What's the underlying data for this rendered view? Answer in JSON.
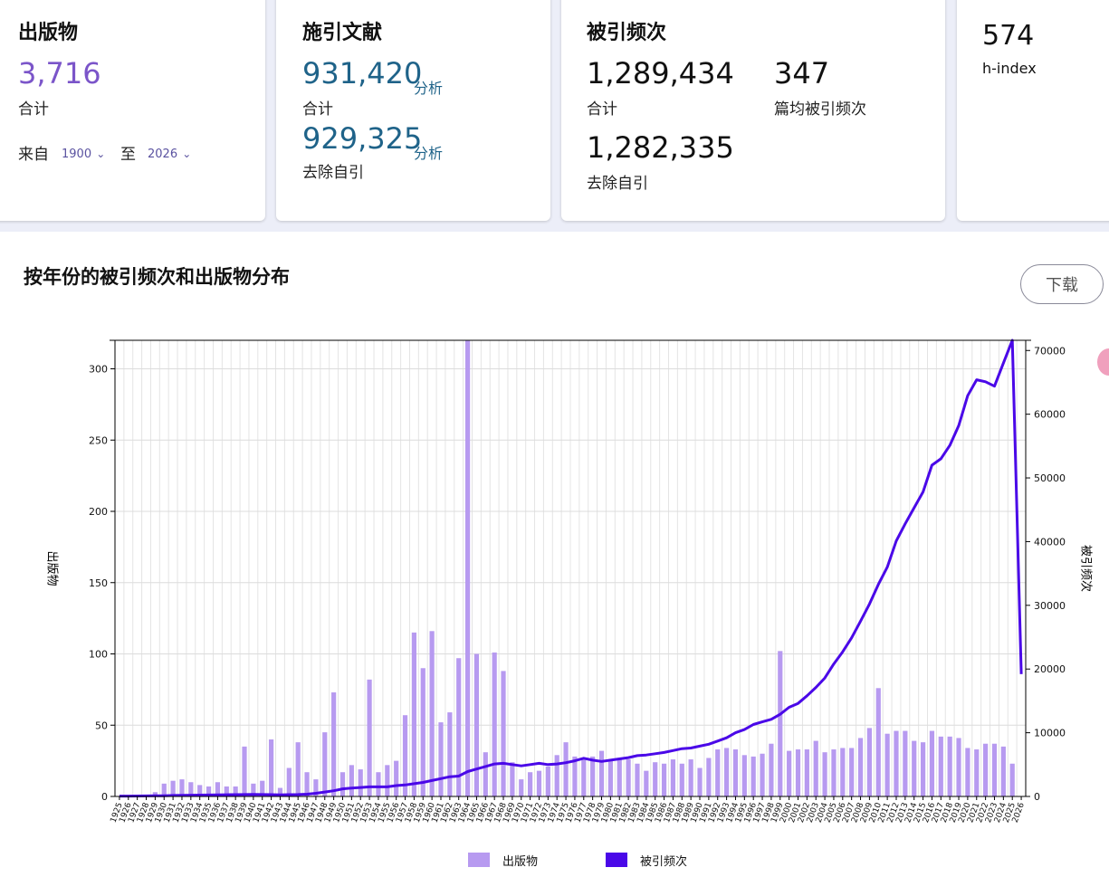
{
  "cards": {
    "publications": {
      "title": "出版物",
      "total": "3,716",
      "total_label": "合计",
      "from_label": "来自",
      "from_value": "1900",
      "to_label": "至",
      "to_value": "2026"
    },
    "citing": {
      "title": "施引文献",
      "total": "931,420",
      "analyze": "分析",
      "total_label": "合计",
      "excl": "929,325",
      "analyze2": "分析",
      "excl_label": "去除自引"
    },
    "times_cited": {
      "title": "被引频次",
      "total": "1,289,434",
      "total_label": "合计",
      "avg": "347",
      "avg_label": "篇均被引频次",
      "excl": "1,282,335",
      "excl_label": "去除自引"
    },
    "hindex": {
      "value": "574",
      "label": "h-index"
    }
  },
  "section_title": "按年份的被引频次和出版物分布",
  "download_label": "下载",
  "colors": {
    "bar": "#b79af0",
    "line": "#4a08e8",
    "accent": "#7b55c9",
    "link": "#1f6389"
  },
  "chart_data": {
    "type": "bar",
    "y_left_label": "出版物",
    "y_right_label": "被引频次",
    "y_left_ticks": [
      0,
      50,
      100,
      150,
      200,
      250,
      300
    ],
    "y_right_ticks": [
      0,
      10000,
      20000,
      30000,
      40000,
      50000,
      60000,
      70000
    ],
    "ylim_left": [
      0,
      320
    ],
    "ylim_right": [
      0,
      71600
    ],
    "categories": [
      "1925",
      "1926",
      "1927",
      "1928",
      "1929",
      "1930",
      "1931",
      "1932",
      "1933",
      "1934",
      "1935",
      "1936",
      "1937",
      "1938",
      "1939",
      "1940",
      "1941",
      "1942",
      "1943",
      "1944",
      "1945",
      "1946",
      "1947",
      "1948",
      "1949",
      "1950",
      "1951",
      "1952",
      "1953",
      "1954",
      "1955",
      "1956",
      "1957",
      "1958",
      "1959",
      "1960",
      "1961",
      "1962",
      "1963",
      "1964",
      "1965",
      "1966",
      "1967",
      "1968",
      "1969",
      "1970",
      "1971",
      "1972",
      "1973",
      "1974",
      "1975",
      "1976",
      "1977",
      "1978",
      "1979",
      "1980",
      "1981",
      "1982",
      "1983",
      "1984",
      "1985",
      "1986",
      "1987",
      "1988",
      "1989",
      "1990",
      "1991",
      "1992",
      "1993",
      "1994",
      "1995",
      "1996",
      "1997",
      "1998",
      "1999",
      "2000",
      "2001",
      "2002",
      "2003",
      "2004",
      "2005",
      "2006",
      "2007",
      "2008",
      "2009",
      "2010",
      "2011",
      "2012",
      "2013",
      "2014",
      "2015",
      "2016",
      "2017",
      "2018",
      "2019",
      "2020",
      "2021",
      "2022",
      "2023",
      "2024",
      "2025",
      "2026"
    ],
    "series": [
      {
        "name": "出版物",
        "type": "bar",
        "values": [
          0,
          0,
          0,
          0,
          3,
          9,
          11,
          12,
          10,
          8,
          7,
          10,
          7,
          7,
          35,
          9,
          11,
          40,
          6,
          20,
          38,
          17,
          12,
          45,
          73,
          17,
          22,
          19,
          82,
          17,
          22,
          25,
          57,
          115,
          90,
          116,
          52,
          59,
          97,
          320,
          100,
          31,
          101,
          88,
          24,
          12,
          17,
          18,
          21,
          29,
          38,
          28,
          26,
          28,
          32,
          25,
          27,
          26,
          23,
          18,
          24,
          23,
          26,
          23,
          26,
          20,
          27,
          33,
          34,
          33,
          29,
          28,
          30,
          37,
          102,
          32,
          33,
          33,
          39,
          31,
          33,
          34,
          34,
          41,
          48,
          76,
          44,
          46,
          46,
          39,
          38,
          46,
          42,
          42,
          41,
          34,
          33,
          37,
          37,
          35,
          23,
          0
        ]
      },
      {
        "name": "被引频次",
        "type": "line",
        "values": [
          50,
          60,
          70,
          80,
          100,
          120,
          150,
          180,
          200,
          220,
          230,
          250,
          270,
          280,
          300,
          320,
          300,
          280,
          260,
          280,
          300,
          350,
          500,
          700,
          900,
          1200,
          1300,
          1400,
          1500,
          1500,
          1500,
          1700,
          1800,
          2000,
          2200,
          2500,
          2800,
          3100,
          3200,
          3900,
          4300,
          4700,
          5100,
          5200,
          5000,
          4800,
          5000,
          5200,
          5000,
          5100,
          5300,
          5600,
          6000,
          5700,
          5500,
          5700,
          5900,
          6100,
          6400,
          6500,
          6700,
          6900,
          7200,
          7500,
          7600,
          7900,
          8200,
          8700,
          9200,
          10000,
          10500,
          11300,
          11700,
          12100,
          12900,
          14000,
          14600,
          15800,
          17100,
          18600,
          20800,
          22700,
          24900,
          27500,
          30200,
          33300,
          36000,
          40100,
          42800,
          45300,
          47800,
          52000,
          53000,
          55100,
          58200,
          62900,
          65400,
          65100,
          64400,
          68000,
          71600,
          19200
        ]
      }
    ]
  },
  "legend": [
    {
      "label": "出版物"
    },
    {
      "label": "被引频次"
    }
  ]
}
